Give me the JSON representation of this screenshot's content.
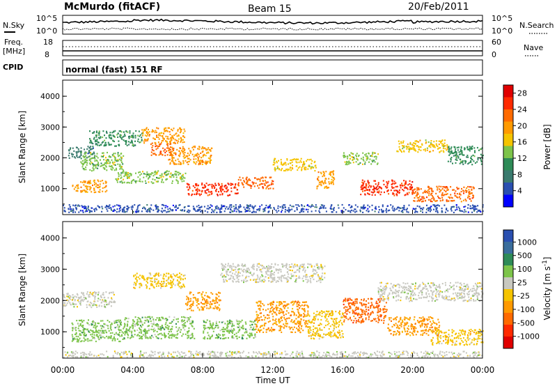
{
  "header": {
    "station": "McMurdo (fitACF)",
    "beam": "Beam 15",
    "date": "20/Feb/2011"
  },
  "side_labels": {
    "nsky": "N.Sky",
    "nsearch": "N.Search",
    "freq_line1": "Freq.",
    "freq_line2": "[MHz]",
    "nave": "Nave",
    "cpid": "CPID"
  },
  "top_axes": {
    "nsky_ticks": [
      "10^5",
      "10^0"
    ],
    "nsearch_ticks": [
      "10^5",
      "10^0"
    ],
    "freq_ticks": [
      "18",
      "8"
    ],
    "nave_ticks": [
      "60",
      "0"
    ]
  },
  "cpid_text": "normal (fast) 151 RF",
  "colors": {
    "power": [
      "#0000ff",
      "#2a4fb0",
      "#3a7a6e",
      "#2e8b57",
      "#7dc44a",
      "#f5c400",
      "#ff9a00",
      "#ff6a00",
      "#ff2a00",
      "#e00000"
    ],
    "velocity": [
      "#2a4fb0",
      "#3a6d9c",
      "#2e8b57",
      "#7dc44a",
      "#c8c8c0",
      "#f5c400",
      "#ff9a00",
      "#ff6a00",
      "#ff2a00",
      "#e00000"
    ],
    "velocity_ground": "#c8c8c0"
  },
  "chart_data": [
    {
      "type": "heatmap",
      "name": "power",
      "xlabel": "",
      "ylabel": "Slant Range [km]",
      "x_ticks": [
        "00:00",
        "04:00",
        "08:00",
        "12:00",
        "16:00",
        "20:00",
        "00:00"
      ],
      "y_ticks": [
        "1000",
        "2000",
        "3000",
        "4000"
      ],
      "ylim": [
        180,
        4500
      ],
      "colorbar": {
        "label": "Power [dB]",
        "ticks": [
          "4",
          "8",
          "12",
          "16",
          "20",
          "24",
          "28"
        ],
        "range": [
          0,
          30
        ]
      },
      "echo_bands": [
        {
          "t": [
            0.3,
            1.8
          ],
          "r": [
            2000,
            2400
          ],
          "v": 8
        },
        {
          "t": [
            1.0,
            3.5
          ],
          "r": [
            1600,
            2200
          ],
          "v": 14
        },
        {
          "t": [
            1.5,
            4.5
          ],
          "r": [
            2400,
            2900
          ],
          "v": 10
        },
        {
          "t": [
            4.5,
            7.0
          ],
          "r": [
            2500,
            3000
          ],
          "v": 22
        },
        {
          "t": [
            5.0,
            6.5
          ],
          "r": [
            2100,
            2500
          ],
          "v": 26
        },
        {
          "t": [
            6.0,
            8.5
          ],
          "r": [
            1800,
            2400
          ],
          "v": 20
        },
        {
          "t": [
            0.5,
            2.5
          ],
          "r": [
            900,
            1300
          ],
          "v": 20
        },
        {
          "t": [
            3.0,
            7.0
          ],
          "r": [
            1200,
            1600
          ],
          "v": 16
        },
        {
          "t": [
            7.0,
            10.0
          ],
          "r": [
            800,
            1200
          ],
          "v": 28
        },
        {
          "t": [
            10.0,
            12.0
          ],
          "r": [
            1000,
            1400
          ],
          "v": 26
        },
        {
          "t": [
            12.0,
            14.5
          ],
          "r": [
            1600,
            2000
          ],
          "v": 18
        },
        {
          "t": [
            14.5,
            15.5
          ],
          "r": [
            1000,
            1600
          ],
          "v": 22
        },
        {
          "t": [
            16.0,
            18.0
          ],
          "r": [
            1800,
            2200
          ],
          "v": 16
        },
        {
          "t": [
            17.0,
            20.0
          ],
          "r": [
            800,
            1300
          ],
          "v": 28
        },
        {
          "t": [
            20.0,
            23.5
          ],
          "r": [
            600,
            1100
          ],
          "v": 26
        },
        {
          "t": [
            19.0,
            22.0
          ],
          "r": [
            2200,
            2600
          ],
          "v": 18
        },
        {
          "t": [
            22.0,
            24.0
          ],
          "r": [
            1800,
            2400
          ],
          "v": 10
        },
        {
          "t": [
            0.0,
            24.0
          ],
          "r": [
            250,
            500
          ],
          "v": 6
        }
      ]
    },
    {
      "type": "heatmap",
      "name": "velocity",
      "xlabel": "Time UT",
      "ylabel": "Slant Range [km]",
      "x_ticks": [
        "00:00",
        "04:00",
        "08:00",
        "12:00",
        "16:00",
        "20:00",
        "00:00"
      ],
      "y_ticks": [
        "1000",
        "2000",
        "3000",
        "4000"
      ],
      "ylim": [
        180,
        4500
      ],
      "colorbar": {
        "label": "Velocity [m s^-1]",
        "ticks": [
          "1000",
          "500",
          "100",
          "25",
          "-25",
          "-100",
          "-500",
          "-1000"
        ],
        "range": [
          1200,
          -1200
        ]
      },
      "echo_bands": [
        {
          "t": [
            0.0,
            3.0
          ],
          "r": [
            1800,
            2300
          ],
          "v": 0
        },
        {
          "t": [
            0.5,
            3.5
          ],
          "r": [
            700,
            1400
          ],
          "v": 300
        },
        {
          "t": [
            3.5,
            7.5
          ],
          "r": [
            800,
            1500
          ],
          "v": 200
        },
        {
          "t": [
            4.0,
            7.0
          ],
          "r": [
            2400,
            2900
          ],
          "v": -300
        },
        {
          "t": [
            7.0,
            9.0
          ],
          "r": [
            1700,
            2300
          ],
          "v": -500
        },
        {
          "t": [
            8.0,
            11.0
          ],
          "r": [
            800,
            1400
          ],
          "v": 250
        },
        {
          "t": [
            11.0,
            14.0
          ],
          "r": [
            1000,
            2000
          ],
          "v": -400
        },
        {
          "t": [
            14.0,
            16.0
          ],
          "r": [
            800,
            1700
          ],
          "v": -300
        },
        {
          "t": [
            16.0,
            18.5
          ],
          "r": [
            1300,
            2100
          ],
          "v": -700
        },
        {
          "t": [
            18.5,
            21.5
          ],
          "r": [
            900,
            1500
          ],
          "v": -400
        },
        {
          "t": [
            21.0,
            24.0
          ],
          "r": [
            600,
            1100
          ],
          "v": -250
        },
        {
          "t": [
            9.0,
            15.0
          ],
          "r": [
            2600,
            3200
          ],
          "v": 0
        },
        {
          "t": [
            18.0,
            24.0
          ],
          "r": [
            2000,
            2600
          ],
          "v": 0
        },
        {
          "t": [
            0.0,
            24.0
          ],
          "r": [
            200,
            400
          ],
          "v": 0
        }
      ]
    }
  ]
}
